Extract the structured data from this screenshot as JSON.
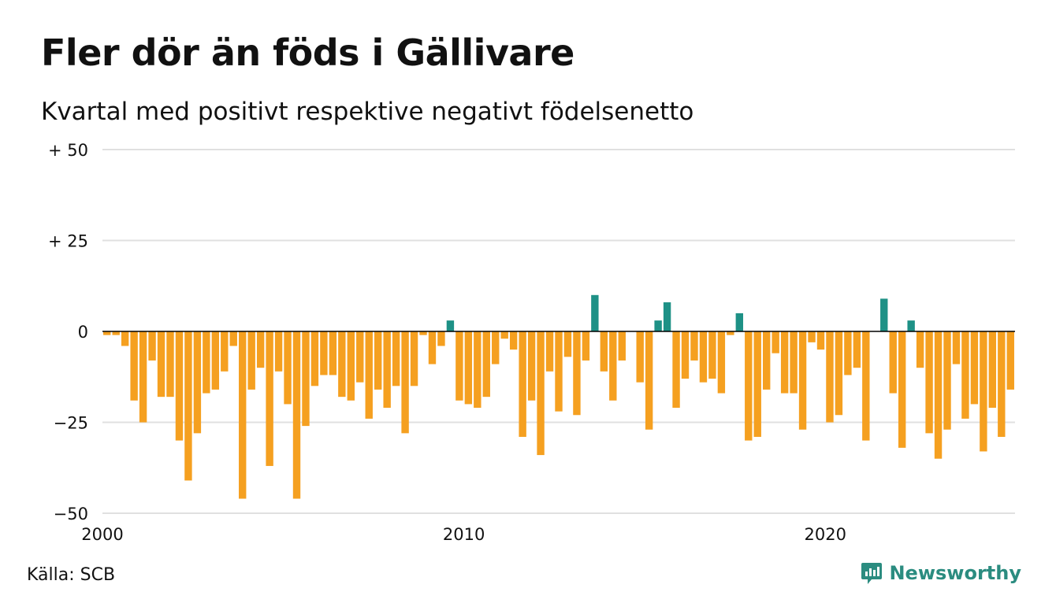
{
  "title": "Fler dör än föds i Gällivare",
  "subtitle": "Kvartal med positivt respektive negativt födelsenetto",
  "source": "Källa: SCB",
  "brand": {
    "name": "Newsworthy",
    "icon": "newsworthy-logo-icon",
    "color": "#2b8c80"
  },
  "colors": {
    "positive": "#1e9186",
    "negative": "#f5a020",
    "grid": "#e0e0e0",
    "zero_line": "#000000"
  },
  "chart_data": {
    "type": "bar",
    "title": "Fler dör än föds i Gällivare",
    "subtitle": "Kvartal med positivt respektive negativt födelsenetto",
    "xlabel": "",
    "ylabel": "",
    "x_start": "2000 Q1",
    "frequency": "quarterly",
    "x_ticks": [
      "2000",
      "2010",
      "2020"
    ],
    "y_ticks": [
      {
        "value": 50,
        "label": "+ 50"
      },
      {
        "value": 25,
        "label": "+ 25"
      },
      {
        "value": 0,
        "label": "0"
      },
      {
        "value": -25,
        "label": "−25"
      },
      {
        "value": -50,
        "label": "−50"
      }
    ],
    "ylim": [
      -50,
      50
    ],
    "grid": true,
    "values": [
      -1,
      -1,
      -4,
      -19,
      -25,
      -8,
      -18,
      -18,
      -30,
      -41,
      -28,
      -17,
      -16,
      -11,
      -4,
      -46,
      -16,
      -10,
      -37,
      -11,
      -20,
      -46,
      -26,
      -15,
      -12,
      -12,
      -18,
      -19,
      -14,
      -24,
      -16,
      -21,
      -15,
      -28,
      -15,
      -1,
      -9,
      -4,
      3,
      -19,
      -20,
      -21,
      -18,
      -9,
      -2,
      -5,
      -29,
      -19,
      -34,
      -11,
      -22,
      -7,
      -23,
      -8,
      10,
      -11,
      -19,
      -8,
      0,
      -14,
      -27,
      3,
      8,
      -21,
      -13,
      -8,
      -14,
      -13,
      -17,
      -1,
      5,
      -30,
      -29,
      -16,
      -6,
      -17,
      -17,
      -27,
      -3,
      -5,
      -25,
      -23,
      -12,
      -10,
      -30,
      0,
      9,
      -17,
      -32,
      3,
      -10,
      -28,
      -35,
      -27,
      -9,
      -24,
      -20,
      -33,
      -21,
      -29,
      -16
    ]
  }
}
